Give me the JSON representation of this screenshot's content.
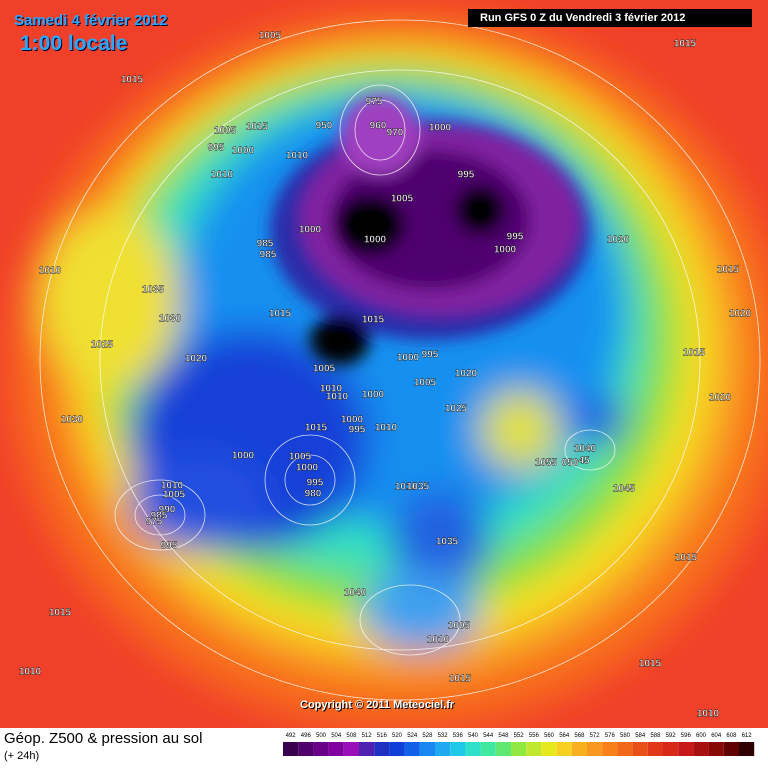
{
  "header": {
    "date": "Samedi 4 février 2012",
    "time": "1:00 locale",
    "run": "Run GFS 0 Z du Vendredi 3 février 2012"
  },
  "copyright": "Copyright © 2011 Meteociel.fr",
  "footer": {
    "title": "Géop. Z500 & pression au sol",
    "subtitle": "(+ 24h)"
  },
  "colorbar": {
    "labels": [
      492,
      496,
      500,
      504,
      508,
      512,
      516,
      520,
      524,
      528,
      532,
      536,
      540,
      544,
      548,
      552,
      556,
      560,
      564,
      568,
      572,
      576,
      580,
      584,
      588,
      592,
      596,
      600,
      604,
      608,
      612
    ]
  },
  "pressure_labels": [
    "1005",
    "1015",
    "1015",
    "975",
    "960",
    "970",
    "950",
    "1000",
    "1005",
    "1015",
    "995",
    "1000",
    "1010",
    "1010",
    "995",
    "1005",
    "1000",
    "985",
    "985",
    "1000",
    "995",
    "1000",
    "1030",
    "1010",
    "1015",
    "1035",
    "1030",
    "1015",
    "1015",
    "1020",
    "1025",
    "1020",
    "1000",
    "995",
    "1015",
    "1005",
    "1005",
    "1020",
    "1010",
    "1010",
    "1000",
    "1020",
    "1025",
    "1030",
    "1015",
    "1000",
    "995",
    "1010",
    "1040",
    "1000",
    "1005",
    "1000",
    "1055",
    "050",
    "45",
    "995",
    "980",
    "1010",
    "1005",
    "990",
    "985",
    "975",
    "1010",
    "1035",
    "1045",
    "995",
    "1035",
    "1015",
    "1040",
    "1015",
    "1005",
    "1010",
    "1015",
    "1010",
    "1015",
    "1010"
  ]
}
